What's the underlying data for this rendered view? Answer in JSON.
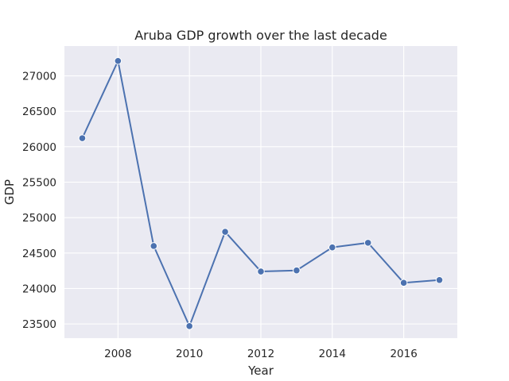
{
  "chart_data": {
    "type": "line",
    "title": "Aruba GDP growth over the last decade",
    "xlabel": "Year",
    "ylabel": "GDP",
    "x": [
      2007,
      2008,
      2009,
      2010,
      2011,
      2012,
      2013,
      2014,
      2015,
      2016,
      2017
    ],
    "series": [
      {
        "values": [
          26120,
          27210,
          24600,
          23470,
          24800,
          24240,
          24255,
          24580,
          24645,
          24080,
          24120
        ]
      }
    ],
    "xlim": [
      2006.5,
      2017.5
    ],
    "ylim": [
      23300,
      27420
    ],
    "xticks": [
      2008,
      2010,
      2012,
      2014,
      2016
    ],
    "yticks": [
      23500,
      24000,
      24500,
      25000,
      25500,
      26000,
      26500,
      27000
    ],
    "grid": true,
    "legend": "none",
    "colors": {
      "background": "#EAEAF2",
      "line": "#4C72B0",
      "grid": "#FFFFFF"
    }
  }
}
